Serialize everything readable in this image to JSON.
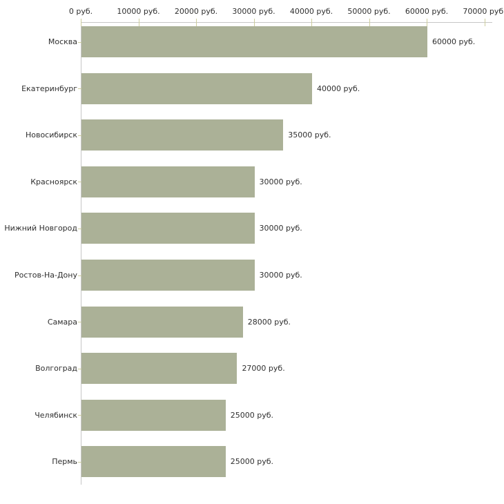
{
  "chart_data": {
    "type": "bar",
    "orientation": "horizontal",
    "categories": [
      "Москва",
      "Екатеринбург",
      "Новосибирск",
      "Красноярск",
      "Нижний Новгород",
      "Ростов-На-Дону",
      "Самара",
      "Волгоград",
      "Челябинск",
      "Пермь"
    ],
    "values": [
      60000,
      40000,
      35000,
      30000,
      30000,
      30000,
      28000,
      27000,
      25000,
      25000
    ],
    "value_labels": [
      "60000 руб.",
      "40000 руб.",
      "35000 руб.",
      "30000 руб.",
      "30000 руб.",
      "30000 руб.",
      "28000 руб.",
      "27000 руб.",
      "25000 руб.",
      "25000 руб."
    ],
    "x_axis": {
      "position": "top",
      "range": [
        0,
        70000
      ],
      "ticks": [
        0,
        10000,
        20000,
        30000,
        40000,
        50000,
        60000,
        70000
      ],
      "tick_labels": [
        "0 руб.",
        "10000 руб.",
        "20000 руб.",
        "30000 руб.",
        "40000 руб.",
        "50000 руб.",
        "60000 руб.",
        "70000 руб."
      ]
    },
    "grid": false,
    "legend": false,
    "colors": {
      "bar": "#abb197",
      "axis_line": "#c6c6c6",
      "tick": "#cdcd9d",
      "text": "#2e2e2e",
      "background": "#ffffff"
    }
  }
}
